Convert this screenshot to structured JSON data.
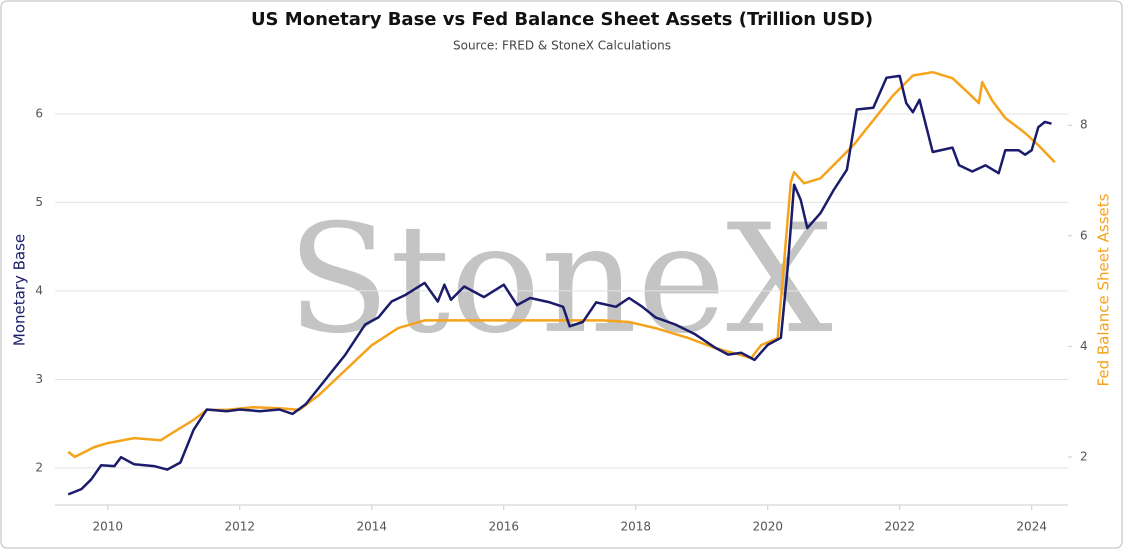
{
  "chart_data": {
    "type": "line",
    "title": "US Monetary Base vs Fed Balance Sheet Assets (Trillion USD)",
    "subtitle": "Source: FRED & StoneX Calculations",
    "watermark": "StoneX",
    "y_label": "Monetary Base",
    "y2_label": "Fed Balance Sheet Assets",
    "xlim": [
      2009.2,
      2024.55
    ],
    "xticks": [
      2010,
      2012,
      2014,
      2016,
      2018,
      2020,
      2022,
      2024
    ],
    "ylim": [
      1.58,
      6.61
    ],
    "yticks": [
      2,
      3,
      4,
      5,
      6
    ],
    "y2lim": [
      1.13,
      9.18
    ],
    "y2ticks": [
      2,
      4,
      6,
      8
    ],
    "grid": true,
    "series": [
      {
        "name": "Monetary Base",
        "color": "#1b1b6b",
        "x": [
          2009.4,
          2009.6,
          2009.75,
          2009.9,
          2010.1,
          2010.2,
          2010.4,
          2010.7,
          2010.9,
          2011.1,
          2011.3,
          2011.5,
          2011.8,
          2012.0,
          2012.3,
          2012.6,
          2012.8,
          2013.0,
          2013.3,
          2013.6,
          2013.9,
          2014.1,
          2014.3,
          2014.5,
          2014.8,
          2015.0,
          2015.1,
          2015.2,
          2015.4,
          2015.7,
          2016.0,
          2016.2,
          2016.4,
          2016.7,
          2016.9,
          2017.0,
          2017.2,
          2017.4,
          2017.7,
          2017.9,
          2018.1,
          2018.3,
          2018.6,
          2018.9,
          2019.2,
          2019.4,
          2019.6,
          2019.8,
          2020.0,
          2020.2,
          2020.3,
          2020.4,
          2020.5,
          2020.6,
          2020.8,
          2021.0,
          2021.2,
          2021.35,
          2021.6,
          2021.8,
          2022.0,
          2022.1,
          2022.2,
          2022.3,
          2022.5,
          2022.8,
          2022.9,
          2023.1,
          2023.3,
          2023.5,
          2023.6,
          2023.8,
          2023.9,
          2024.0,
          2024.1,
          2024.2,
          2024.3
        ],
        "values": [
          1.7,
          1.76,
          1.87,
          2.03,
          2.02,
          2.12,
          2.04,
          2.02,
          1.98,
          2.06,
          2.43,
          2.66,
          2.64,
          2.66,
          2.64,
          2.66,
          2.61,
          2.72,
          3.0,
          3.28,
          3.62,
          3.7,
          3.88,
          3.95,
          4.09,
          3.88,
          4.07,
          3.9,
          4.05,
          3.93,
          4.07,
          3.84,
          3.92,
          3.87,
          3.82,
          3.6,
          3.65,
          3.87,
          3.82,
          3.92,
          3.82,
          3.7,
          3.62,
          3.51,
          3.36,
          3.28,
          3.3,
          3.22,
          3.39,
          3.47,
          4.24,
          5.2,
          5.03,
          4.71,
          4.88,
          5.14,
          5.37,
          6.05,
          6.07,
          6.41,
          6.43,
          6.12,
          6.02,
          6.16,
          5.57,
          5.62,
          5.42,
          5.35,
          5.42,
          5.33,
          5.59,
          5.59,
          5.54,
          5.59,
          5.85,
          5.91,
          5.89
        ]
      },
      {
        "name": "Fed Balance Sheet Assets",
        "color": "#f5a31a",
        "axis": "y2",
        "x": [
          2009.4,
          2009.5,
          2009.8,
          2010.0,
          2010.4,
          2010.8,
          2011.0,
          2011.3,
          2011.5,
          2011.8,
          2012.2,
          2012.6,
          2012.9,
          2013.2,
          2013.6,
          2014.0,
          2014.4,
          2014.8,
          2015.5,
          2016.5,
          2017.5,
          2017.9,
          2018.3,
          2018.8,
          2019.2,
          2019.6,
          2019.75,
          2019.9,
          2020.15,
          2020.2,
          2020.35,
          2020.4,
          2020.55,
          2020.8,
          2021.0,
          2021.3,
          2021.6,
          2021.9,
          2022.2,
          2022.5,
          2022.8,
          2023.0,
          2023.2,
          2023.25,
          2023.4,
          2023.6,
          2023.9,
          2024.1,
          2024.35
        ],
        "values": [
          2.09,
          2.0,
          2.18,
          2.25,
          2.34,
          2.3,
          2.45,
          2.67,
          2.85,
          2.85,
          2.9,
          2.88,
          2.85,
          3.12,
          3.57,
          4.02,
          4.33,
          4.47,
          4.47,
          4.47,
          4.47,
          4.44,
          4.33,
          4.15,
          3.97,
          3.84,
          3.79,
          4.02,
          4.15,
          4.84,
          6.97,
          7.15,
          6.95,
          7.04,
          7.28,
          7.64,
          8.09,
          8.54,
          8.9,
          8.96,
          8.85,
          8.63,
          8.4,
          8.78,
          8.45,
          8.13,
          7.86,
          7.64,
          7.33
        ]
      }
    ]
  }
}
